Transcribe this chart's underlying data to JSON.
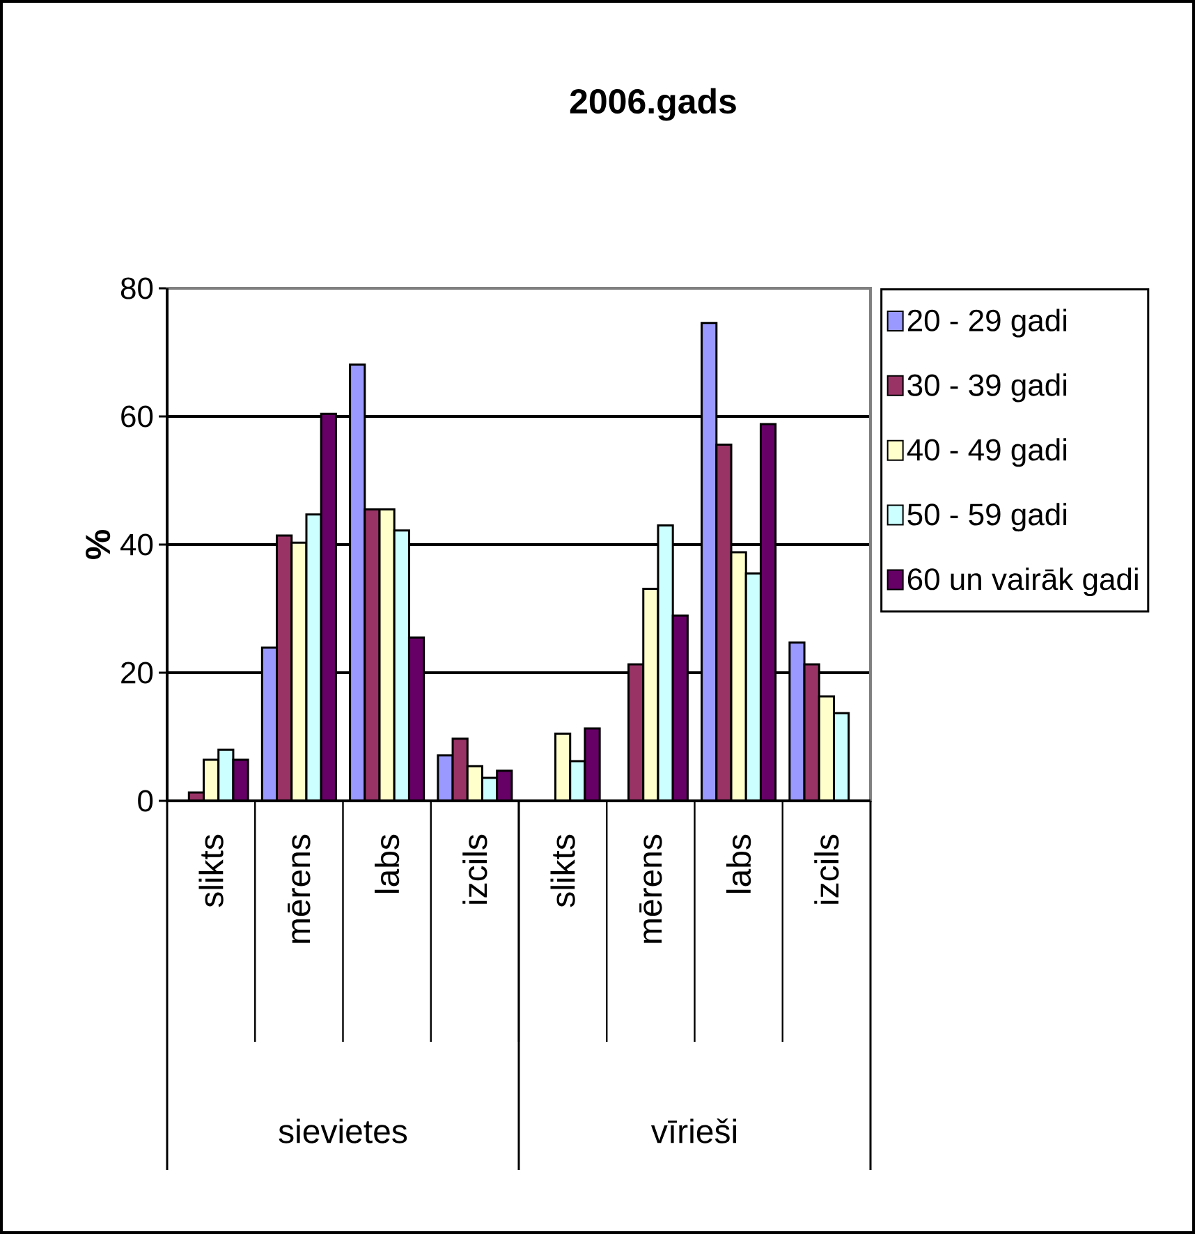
{
  "chart_data": {
    "type": "bar",
    "title": "2006.gads",
    "ylabel": "%",
    "categories": [
      "slikts",
      "mērens",
      "labs",
      "izcils",
      "slikts",
      "mērens",
      "labs",
      "izcils"
    ],
    "annotations": [
      "sievietes",
      "vīrieši"
    ],
    "series": [
      {
        "name": "20 - 29 gadi",
        "color": "#9999ff",
        "values": [
          null,
          23.9,
          68.1,
          7.1,
          null,
          null,
          74.6,
          24.7
        ]
      },
      {
        "name": "30 - 39 gadi",
        "color": "#993366",
        "values": [
          1.3,
          41.4,
          45.5,
          9.7,
          null,
          21.3,
          55.6,
          21.3
        ]
      },
      {
        "name": "40 - 49 gadi",
        "color": "#ffffcc",
        "values": [
          6.4,
          40.3,
          45.5,
          5.4,
          10.5,
          33.1,
          38.8,
          16.3
        ]
      },
      {
        "name": "50 - 59 gadi",
        "color": "#ccffff",
        "values": [
          8.0,
          44.7,
          42.2,
          3.6,
          6.2,
          43.0,
          35.5,
          13.7
        ]
      },
      {
        "name": "60 un vairāk gadi",
        "color": "#660066",
        "values": [
          6.4,
          60.4,
          25.5,
          4.7,
          11.3,
          28.9,
          58.8,
          null
        ]
      }
    ],
    "ylim": [
      0,
      80
    ],
    "yticks": [
      0,
      20,
      40,
      60,
      80
    ],
    "grid": "y",
    "legend": "right"
  }
}
